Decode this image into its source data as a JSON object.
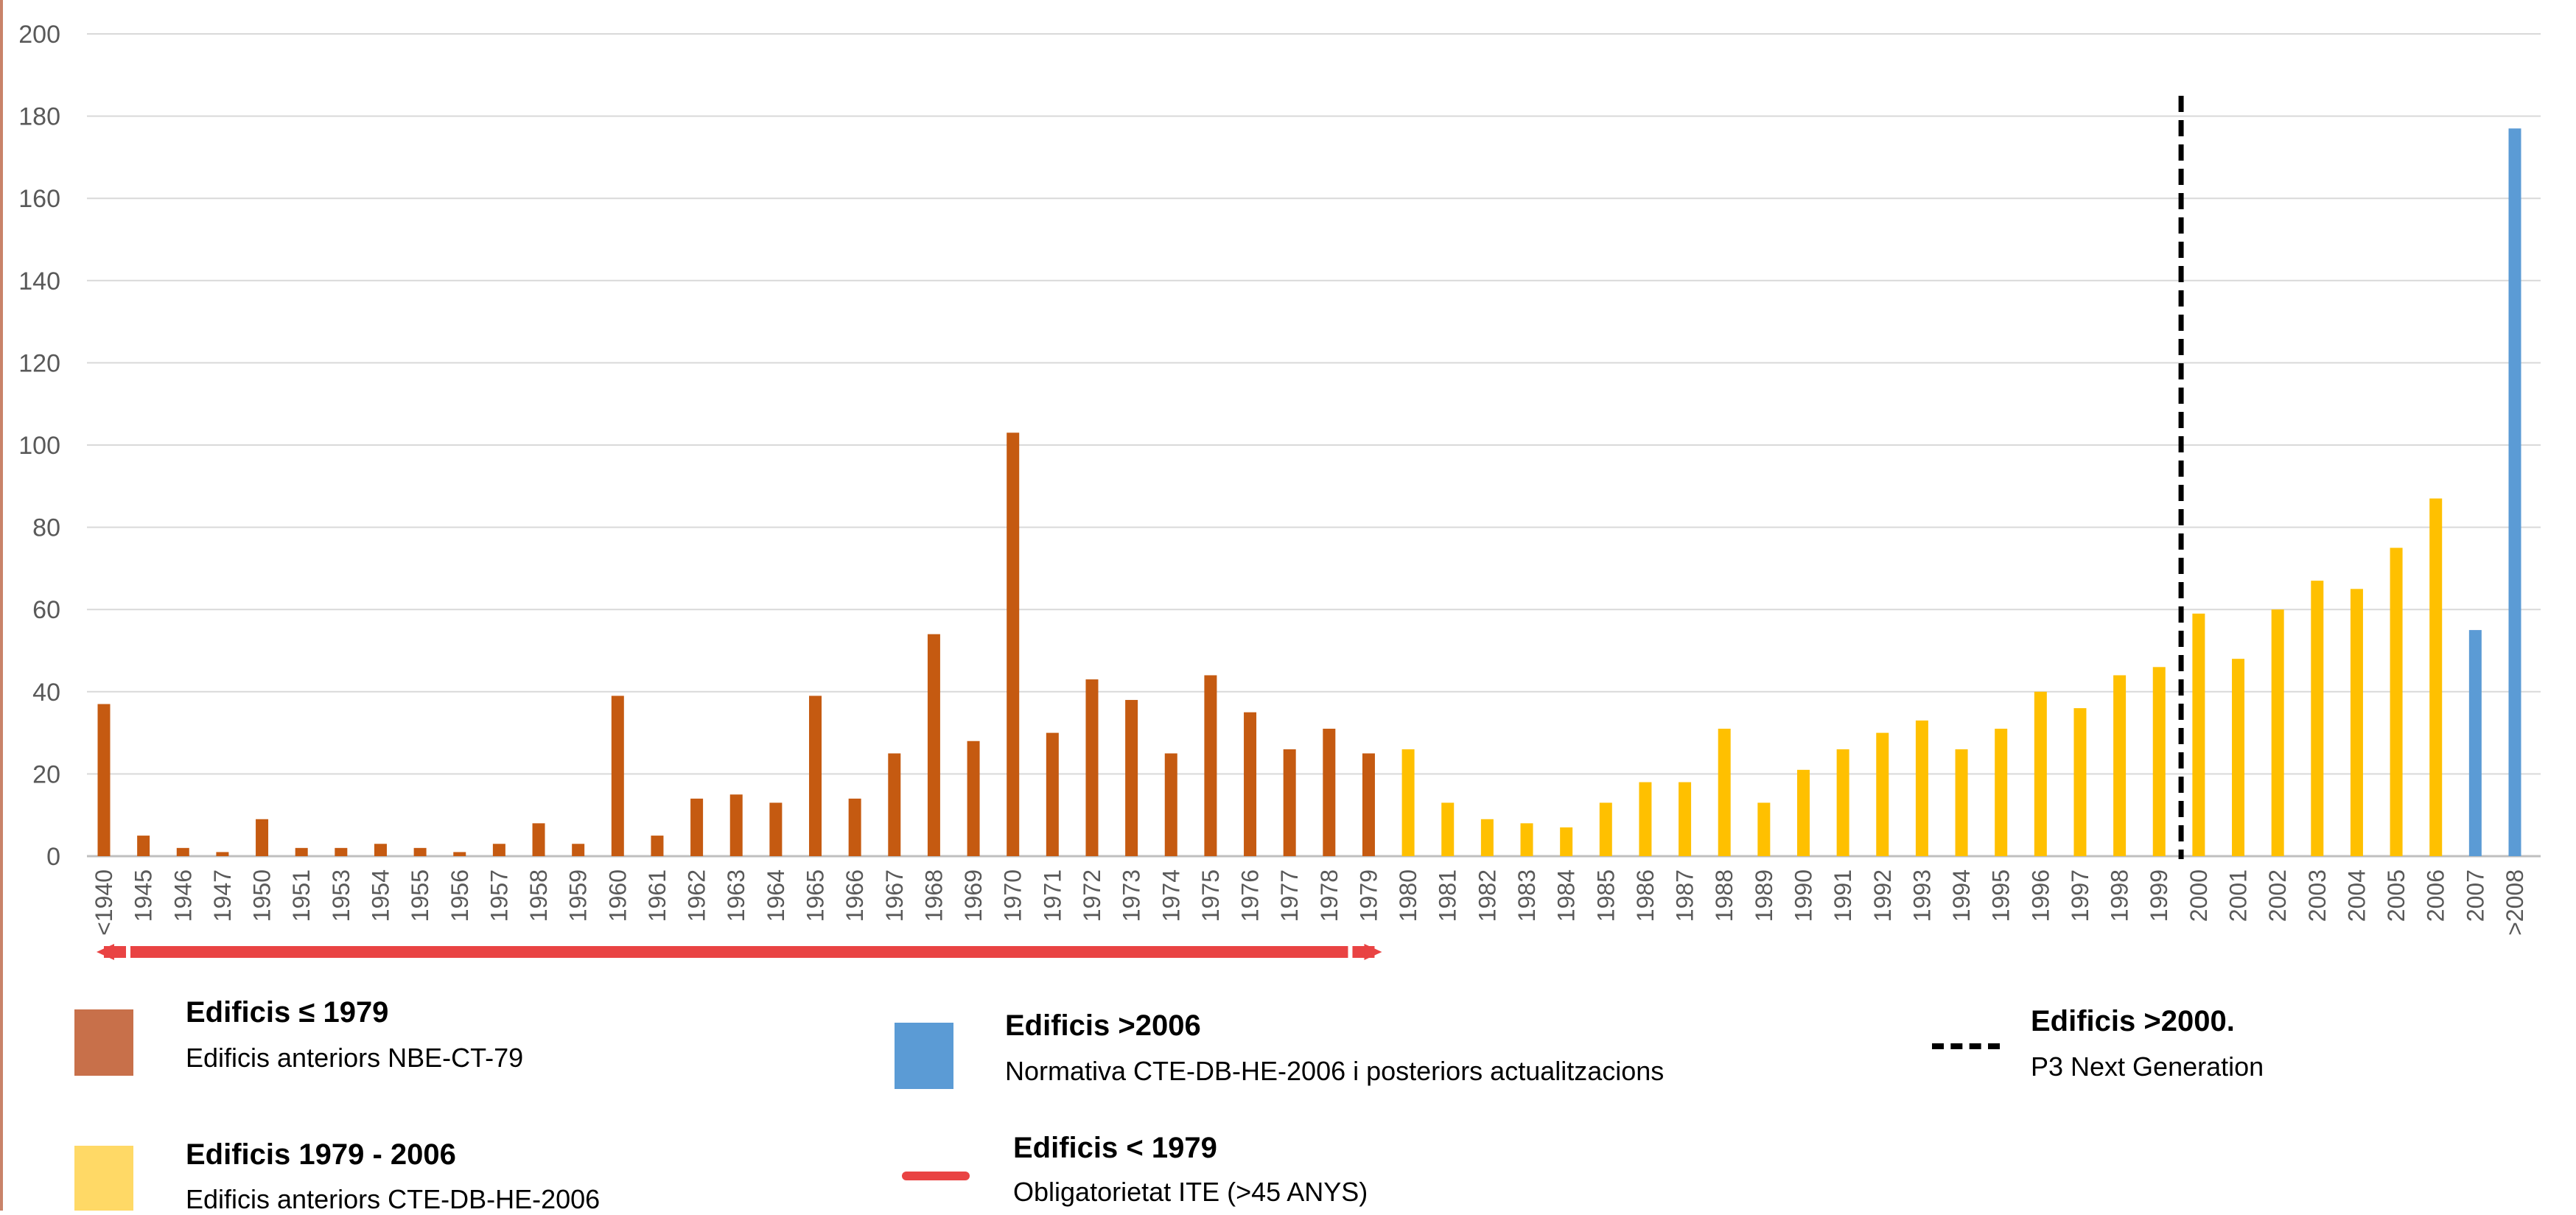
{
  "chart_data": {
    "type": "bar",
    "categories": [
      "<1940",
      "1945",
      "1946",
      "1947",
      "1950",
      "1951",
      "1953",
      "1954",
      "1955",
      "1956",
      "1957",
      "1958",
      "1959",
      "1960",
      "1961",
      "1962",
      "1963",
      "1964",
      "1965",
      "1966",
      "1967",
      "1968",
      "1969",
      "1970",
      "1971",
      "1972",
      "1973",
      "1974",
      "1975",
      "1976",
      "1977",
      "1978",
      "1979",
      "1980",
      "1981",
      "1982",
      "1983",
      "1984",
      "1985",
      "1986",
      "1987",
      "1988",
      "1989",
      "1990",
      "1991",
      "1992",
      "1993",
      "1994",
      "1995",
      "1996",
      "1997",
      "1998",
      "1999",
      "2000",
      "2001",
      "2002",
      "2003",
      "2004",
      "2005",
      "2006",
      "2007",
      ">2008"
    ],
    "values": [
      37,
      5,
      2,
      1,
      9,
      2,
      2,
      3,
      2,
      1,
      3,
      8,
      3,
      39,
      5,
      14,
      15,
      13,
      39,
      14,
      25,
      54,
      28,
      103,
      30,
      43,
      38,
      25,
      44,
      35,
      26,
      31,
      25,
      26,
      13,
      9,
      8,
      7,
      13,
      18,
      18,
      31,
      13,
      21,
      26,
      30,
      33,
      26,
      31,
      40,
      36,
      44,
      46,
      59,
      48,
      60,
      67,
      65,
      75,
      87,
      55,
      177
    ],
    "groups": [
      "pre1979",
      "pre1979",
      "pre1979",
      "pre1979",
      "pre1979",
      "pre1979",
      "pre1979",
      "pre1979",
      "pre1979",
      "pre1979",
      "pre1979",
      "pre1979",
      "pre1979",
      "pre1979",
      "pre1979",
      "pre1979",
      "pre1979",
      "pre1979",
      "pre1979",
      "pre1979",
      "pre1979",
      "pre1979",
      "pre1979",
      "pre1979",
      "pre1979",
      "pre1979",
      "pre1979",
      "pre1979",
      "pre1979",
      "pre1979",
      "pre1979",
      "pre1979",
      "pre1979",
      "mid",
      "mid",
      "mid",
      "mid",
      "mid",
      "mid",
      "mid",
      "mid",
      "mid",
      "mid",
      "mid",
      "mid",
      "mid",
      "mid",
      "mid",
      "mid",
      "mid",
      "mid",
      "mid",
      "mid",
      "mid",
      "mid",
      "mid",
      "mid",
      "mid",
      "mid",
      "mid",
      "post2006",
      "post2006"
    ],
    "group_colors": {
      "pre1979": "#c55a11",
      "mid": "#ffc000",
      "post2006": "#5b9bd5"
    },
    "ylim": [
      0,
      200
    ],
    "yticks": [
      0,
      20,
      40,
      60,
      80,
      100,
      120,
      140,
      160,
      180,
      200
    ],
    "grid": true,
    "reference_line": {
      "between": [
        "1999",
        "2000"
      ],
      "style": "dashed",
      "color": "#000000"
    },
    "range_marker": {
      "from": "<1940",
      "to": "1979",
      "color": "#e94343"
    },
    "title": "",
    "xlabel": "",
    "ylabel": ""
  },
  "legend": {
    "pre1979": {
      "title": "Edificis ≤ 1979",
      "subtitle": "Edificis anteriors NBE-CT-79",
      "color": "#c8704a"
    },
    "post2006": {
      "title": "Edificis  >2006",
      "subtitle": "Normativa CTE-DB-HE-2006 i posteriors actualitzacions",
      "color": "#5b9bd5"
    },
    "post2000": {
      "title": "Edificis >2000.",
      "subtitle": "P3 Next Generation",
      "color": "#000000"
    },
    "mid": {
      "title": "Edificis 1979 - 2006",
      "subtitle": "Edificis anteriors CTE-DB-HE-2006",
      "color": "#ffd966"
    },
    "ite": {
      "title": "Edificis < 1979",
      "subtitle": "Obligatorietat ITE (>45 ANYS)",
      "color": "#e94343"
    }
  }
}
